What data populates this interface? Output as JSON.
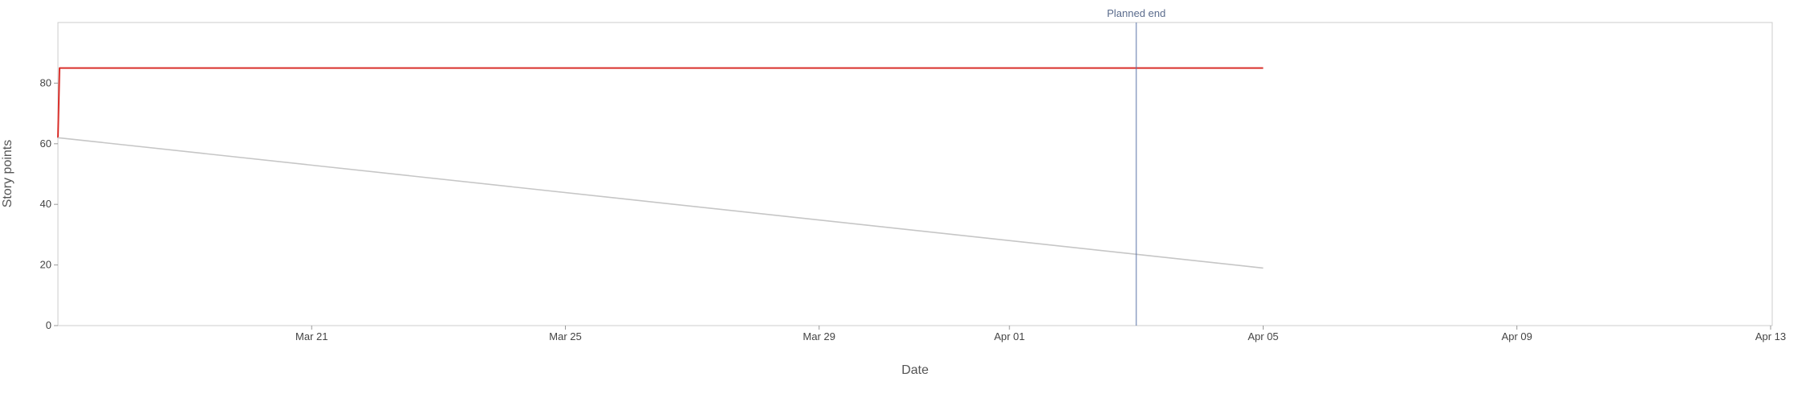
{
  "chart_data": {
    "type": "line",
    "title": "",
    "xlabel": "Date",
    "ylabel": "Story points",
    "x_axis": {
      "type": "date",
      "range": [
        "2026-03-17",
        "2026-04-13"
      ],
      "ticks": [
        {
          "date": "2026-03-21",
          "label": "Mar 21"
        },
        {
          "date": "2026-03-25",
          "label": "Mar 25"
        },
        {
          "date": "2026-03-29",
          "label": "Mar 29"
        },
        {
          "date": "2026-04-01",
          "label": "Apr 01"
        },
        {
          "date": "2026-04-05",
          "label": "Apr 05"
        },
        {
          "date": "2026-04-09",
          "label": "Apr 09"
        },
        {
          "date": "2026-04-13",
          "label": "Apr 13"
        }
      ]
    },
    "y_axis": {
      "range": [
        0,
        100
      ],
      "ticks": [
        0,
        20,
        40,
        60,
        80
      ]
    },
    "grid": false,
    "series": [
      {
        "color": "#d9302b",
        "points": [
          {
            "x": "2026-03-17",
            "y": 62
          },
          {
            "x": "2026-03-17",
            "y": 85
          },
          {
            "x": "2026-04-05",
            "y": 85
          }
        ]
      },
      {
        "color": "#c6c6c6",
        "points": [
          {
            "x": "2026-03-17",
            "y": 62
          },
          {
            "x": "2026-04-05",
            "y": 19
          }
        ]
      }
    ],
    "markers": [
      {
        "label": "Planned end",
        "x": "2026-04-03",
        "color": "#5a73a8"
      }
    ],
    "frame_color": "#cccccc"
  }
}
